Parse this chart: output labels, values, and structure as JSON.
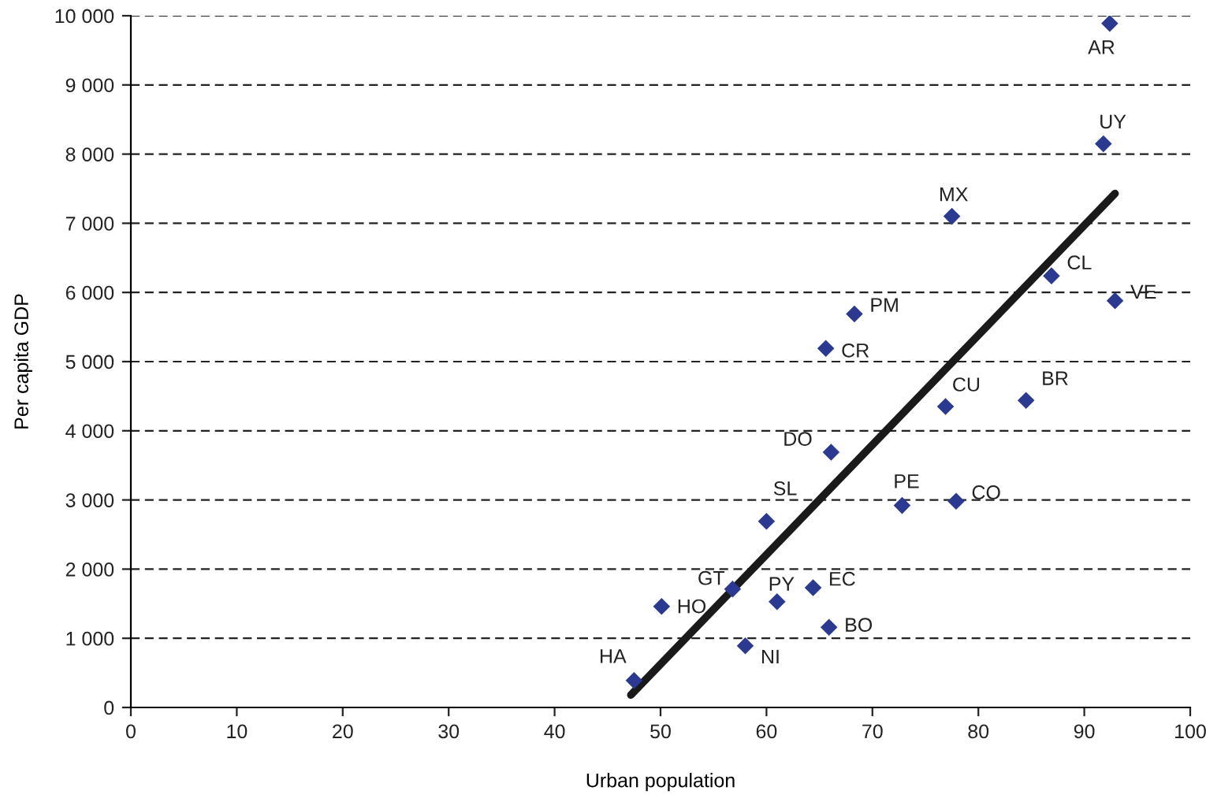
{
  "chart_data": {
    "type": "scatter",
    "xlabel": "Urban population",
    "ylabel": "Per capita GDP",
    "xlim": [
      0,
      100
    ],
    "xticks": [
      0,
      10,
      20,
      30,
      40,
      50,
      60,
      70,
      80,
      90,
      100
    ],
    "ylim": [
      0,
      10000
    ],
    "yticks": [
      {
        "value": 0,
        "label": "0"
      },
      {
        "value": 1000,
        "label": "1 000"
      },
      {
        "value": 2000,
        "label": "2 000"
      },
      {
        "value": 3000,
        "label": "3 000"
      },
      {
        "value": 4000,
        "label": "4 000"
      },
      {
        "value": 5000,
        "label": "5 000"
      },
      {
        "value": 6000,
        "label": "6 000"
      },
      {
        "value": 7000,
        "label": "7 000"
      },
      {
        "value": 8000,
        "label": "8 000"
      },
      {
        "value": 9000,
        "label": "9 000"
      },
      {
        "value": 10000,
        "label": "10 000"
      }
    ],
    "grid": "y",
    "legend": false,
    "series": [
      {
        "color": "#2b3990",
        "marker": "diamond",
        "x": [
          92.4,
          91.8,
          77.5,
          86.9,
          92.9,
          68.3,
          65.6,
          76.9,
          84.5,
          66.1,
          60.0,
          72.8,
          77.9,
          56.8,
          64.4,
          61.0,
          50.1,
          65.9,
          58.0,
          47.5
        ],
        "values": [
          9890,
          8150,
          7100,
          6240,
          5880,
          5690,
          5190,
          4350,
          4440,
          3690,
          2690,
          2920,
          2980,
          1710,
          1730,
          1530,
          1460,
          1160,
          890,
          390
        ]
      },
      {
        "type": "line",
        "color": "#1a1a1a",
        "marker": "none",
        "x": [
          47.2,
          92.9
        ],
        "values": [
          180,
          7430
        ]
      }
    ],
    "annotations": [
      {
        "text": "AR",
        "x": 92.4,
        "y": 9890
      },
      {
        "text": "UY",
        "x": 91.8,
        "y": 8150
      },
      {
        "text": "MX",
        "x": 77.5,
        "y": 7100
      },
      {
        "text": "CL",
        "x": 86.9,
        "y": 6240
      },
      {
        "text": "VE",
        "x": 92.9,
        "y": 5880
      },
      {
        "text": "PM",
        "x": 68.3,
        "y": 5690
      },
      {
        "text": "CR",
        "x": 65.6,
        "y": 5190
      },
      {
        "text": "CU",
        "x": 76.9,
        "y": 4350
      },
      {
        "text": "BR",
        "x": 84.5,
        "y": 4440
      },
      {
        "text": "DO",
        "x": 66.1,
        "y": 3690
      },
      {
        "text": "SL",
        "x": 60.0,
        "y": 2690
      },
      {
        "text": "PE",
        "x": 72.8,
        "y": 2920
      },
      {
        "text": "CO",
        "x": 77.9,
        "y": 2980
      },
      {
        "text": "GT",
        "x": 56.8,
        "y": 1710
      },
      {
        "text": "EC",
        "x": 64.4,
        "y": 1730
      },
      {
        "text": "PY",
        "x": 61.0,
        "y": 1530
      },
      {
        "text": "HO",
        "x": 50.1,
        "y": 1460
      },
      {
        "text": "BO",
        "x": 65.9,
        "y": 1160
      },
      {
        "text": "NI",
        "x": 58.0,
        "y": 890
      },
      {
        "text": "HA",
        "x": 47.5,
        "y": 390
      }
    ]
  }
}
